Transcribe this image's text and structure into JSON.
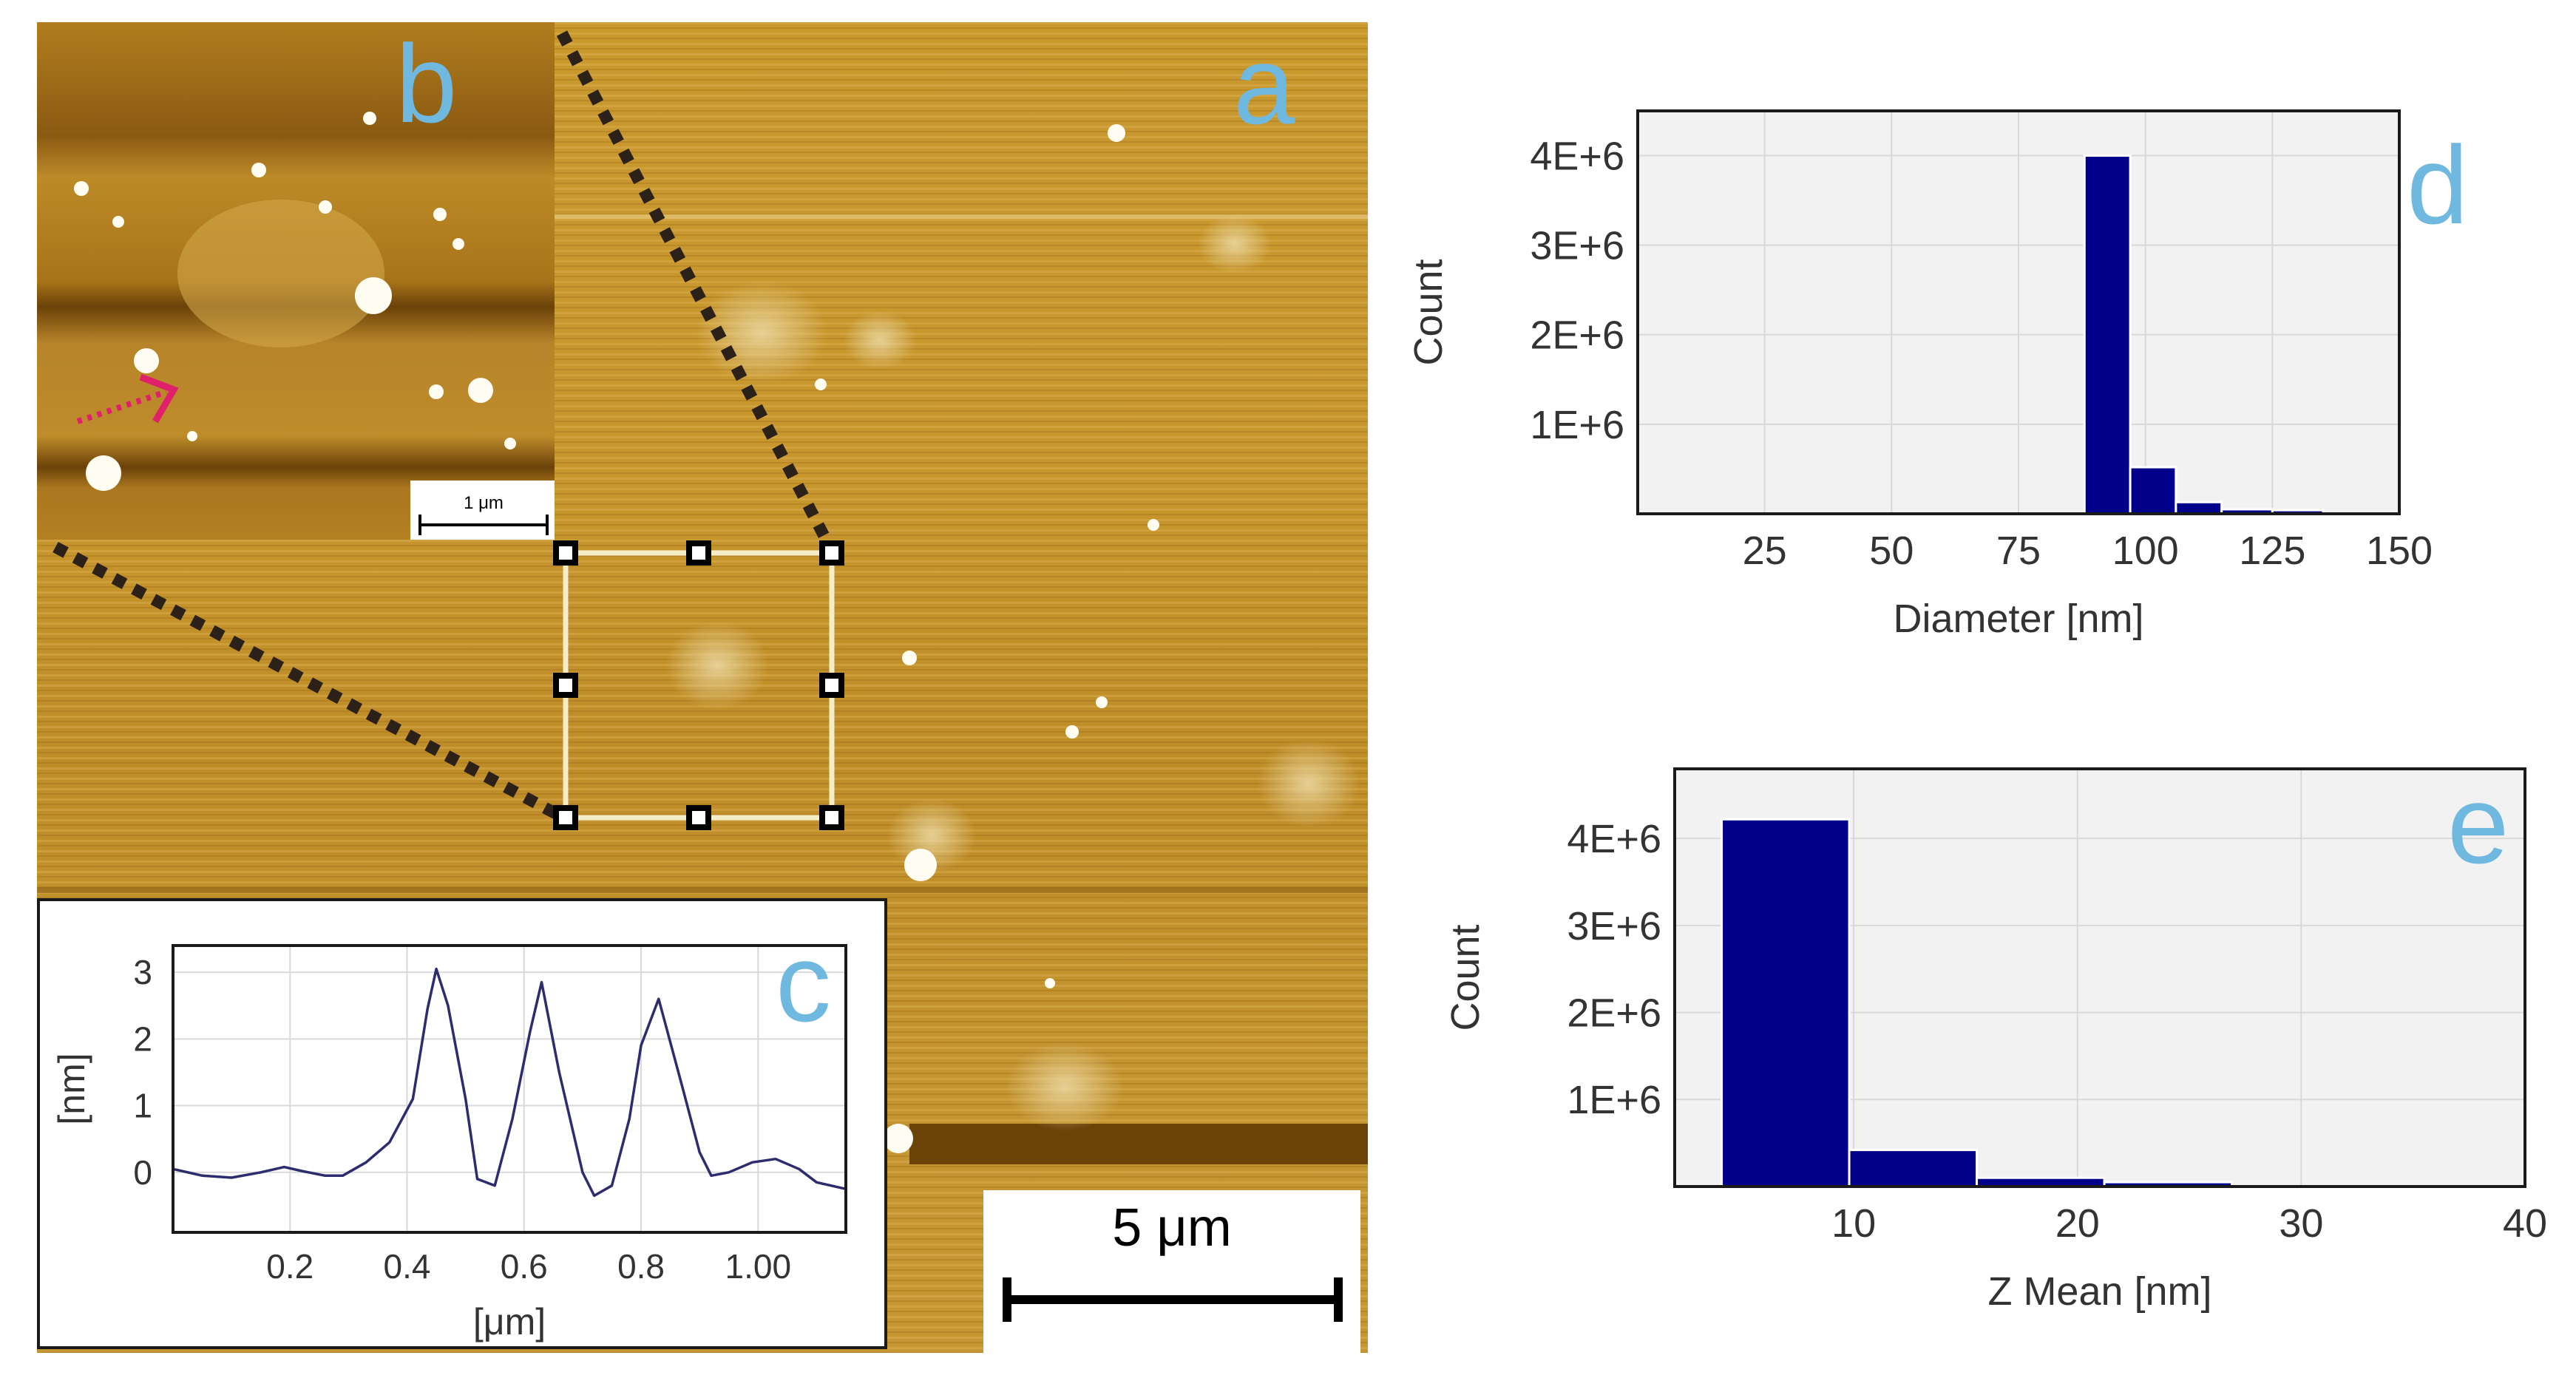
{
  "panels": {
    "a": {
      "letter": "a",
      "scale_bar_label": "5 μm"
    },
    "b": {
      "letter": "b",
      "scale_bar_label": "1 μm"
    },
    "c": {
      "letter": "c"
    },
    "d": {
      "letter": "d"
    },
    "e": {
      "letter": "e"
    }
  },
  "chart_data": [
    {
      "type": "line",
      "panel": "c",
      "xlabel": "[μm]",
      "ylabel": "[nm]",
      "xlim": [
        0.0,
        1.15
      ],
      "ylim": [
        -0.9,
        3.4
      ],
      "x_ticks": [
        0.2,
        0.4,
        0.6,
        0.8,
        1.0
      ],
      "x_tick_labels": [
        "0.2",
        "0.4",
        "0.6",
        "0.8",
        "1.00"
      ],
      "y_ticks": [
        0,
        1,
        2,
        3
      ],
      "y_tick_labels": [
        "0",
        "1",
        "2",
        "3"
      ],
      "grid": true,
      "series": [
        {
          "values": [
            [
              0.0,
              0.05
            ],
            [
              0.05,
              -0.05
            ],
            [
              0.1,
              -0.08
            ],
            [
              0.15,
              0.0
            ],
            [
              0.19,
              0.08
            ],
            [
              0.22,
              0.02
            ],
            [
              0.26,
              -0.05
            ],
            [
              0.29,
              -0.05
            ],
            [
              0.33,
              0.15
            ],
            [
              0.37,
              0.45
            ],
            [
              0.41,
              1.1
            ],
            [
              0.435,
              2.45
            ],
            [
              0.45,
              3.05
            ],
            [
              0.47,
              2.5
            ],
            [
              0.5,
              1.1
            ],
            [
              0.52,
              -0.1
            ],
            [
              0.55,
              -0.2
            ],
            [
              0.58,
              0.8
            ],
            [
              0.61,
              2.1
            ],
            [
              0.63,
              2.85
            ],
            [
              0.66,
              1.5
            ],
            [
              0.7,
              0.0
            ],
            [
              0.72,
              -0.35
            ],
            [
              0.75,
              -0.2
            ],
            [
              0.78,
              0.8
            ],
            [
              0.8,
              1.9
            ],
            [
              0.83,
              2.6
            ],
            [
              0.87,
              1.3
            ],
            [
              0.9,
              0.3
            ],
            [
              0.92,
              -0.05
            ],
            [
              0.95,
              0.0
            ],
            [
              0.99,
              0.15
            ],
            [
              1.03,
              0.2
            ],
            [
              1.07,
              0.05
            ],
            [
              1.1,
              -0.15
            ],
            [
              1.15,
              -0.25
            ]
          ]
        }
      ]
    },
    {
      "type": "bar",
      "panel": "d",
      "xlabel": "Diameter [nm]",
      "ylabel": "Count",
      "xlim": [
        0,
        150
      ],
      "ylim": [
        0,
        4500000
      ],
      "x_ticks": [
        25,
        50,
        75,
        100,
        125,
        150
      ],
      "x_tick_labels": [
        "25",
        "50",
        "75",
        "100",
        "125",
        "150"
      ],
      "y_ticks": [
        1000000,
        2000000,
        3000000,
        4000000
      ],
      "y_tick_labels": [
        "1E+6",
        "2E+6",
        "3E+6",
        "4E+6"
      ],
      "grid": true,
      "bins": [
        [
          88,
          97
        ],
        [
          97,
          106
        ],
        [
          106,
          115
        ],
        [
          115,
          125
        ],
        [
          125,
          135
        ]
      ],
      "values": [
        4000000,
        520000,
        130000,
        50000,
        40000
      ]
    },
    {
      "type": "bar",
      "panel": "e",
      "xlabel": "Z Mean [nm]",
      "ylabel": "Count",
      "xlim": [
        2,
        40
      ],
      "ylim": [
        0,
        4800000
      ],
      "x_ticks": [
        10,
        20,
        30,
        40
      ],
      "x_tick_labels": [
        "10",
        "20",
        "30",
        "40"
      ],
      "y_ticks": [
        1000000,
        2000000,
        3000000,
        4000000
      ],
      "y_tick_labels": [
        "1E+6",
        "2E+6",
        "3E+6",
        "4E+6"
      ],
      "grid": true,
      "bins": [
        [
          4.1,
          9.8
        ],
        [
          9.8,
          15.5
        ],
        [
          15.5,
          21.2
        ],
        [
          21.2,
          26.9
        ]
      ],
      "values": [
        4220000,
        420000,
        100000,
        50000
      ]
    }
  ],
  "colors": {
    "afm_base": "#c4962c",
    "afm_light": "#e3bf6a",
    "afm_dark": "#6b4208",
    "bar": "#00008b",
    "line": "#2c2c6e",
    "letter": "#6fb8e0",
    "arrow": "#e0206a"
  }
}
